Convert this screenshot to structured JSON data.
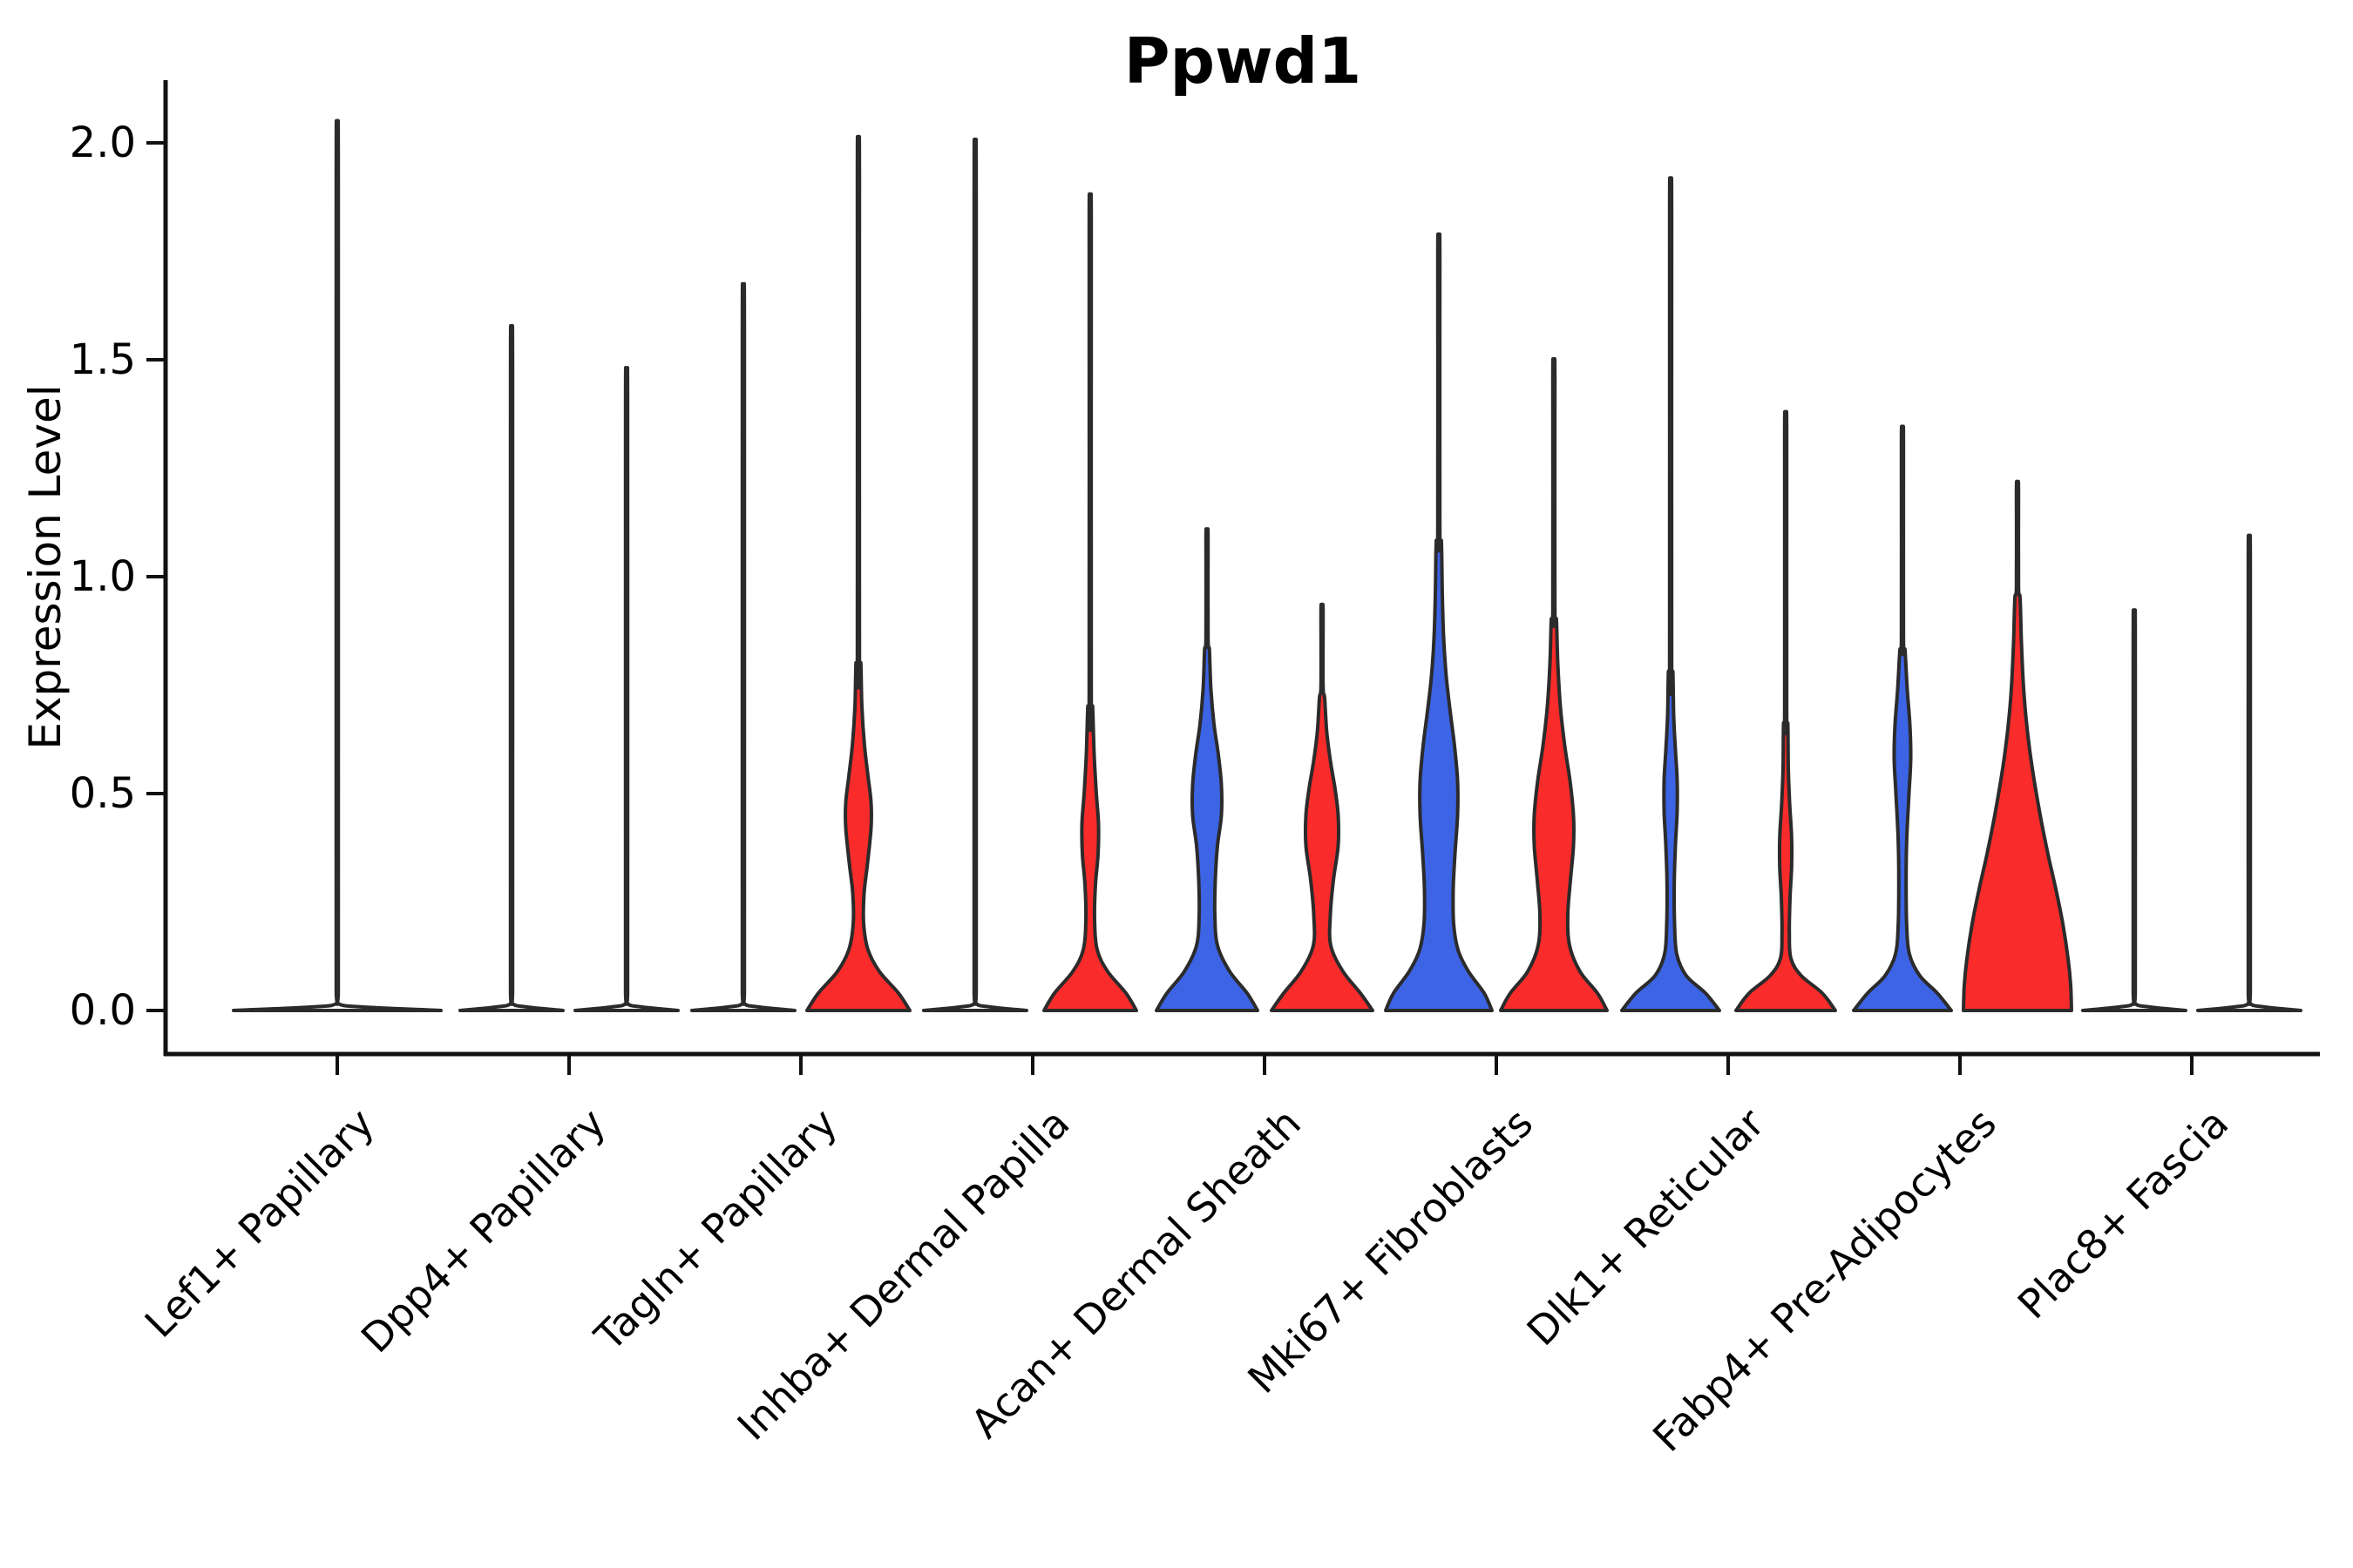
{
  "colors": {
    "blue": "#3D64E4",
    "red": "#F92B2B",
    "outline": "#2B2B2B",
    "axis": "#111111",
    "text": "#000000",
    "background": "#FFFFFF"
  },
  "chart_data": {
    "type": "violin",
    "title": "Ppwd1",
    "ylabel": "Expression Level",
    "xlabel": "",
    "ylim": [
      -0.1,
      2.15
    ],
    "yticks": [
      0.0,
      0.5,
      1.0,
      1.5,
      2.0
    ],
    "y_tick_labels": [
      "0.0",
      "0.5",
      "1.0",
      "1.5",
      "2.0"
    ],
    "grid": false,
    "legend_position": "none",
    "categories": [
      "Lef1+ Papillary",
      "Dpp4+ Papillary",
      "Tagln+ Papillary",
      "Inhba+ Dermal Papilla",
      "Acan+ Dermal Sheath",
      "Mki67+ Fibroblasts",
      "Dlk1+ Reticular",
      "Fabp4+ Pre-Adipocytes",
      "Plac8+ Fascia"
    ],
    "groups": [
      {
        "key": "blue",
        "color": "#3D64E4"
      },
      {
        "key": "red",
        "color": "#F92B2B"
      }
    ],
    "series": [
      {
        "name": "blue",
        "max_values": [
          null,
          1.48,
          1.57,
          1.88,
          1.1,
          1.75,
          1.85,
          1.32,
          0.87
        ]
      },
      {
        "name": "red",
        "max_values": [
          null,
          1.39,
          1.94,
          1.81,
          0.93,
          1.47,
          1.34,
          1.21,
          1.03
        ]
      }
    ],
    "violins": [
      {
        "cat_index": 0,
        "side": "center",
        "group": null,
        "flat": true,
        "max_expression": 1.92,
        "profile": [
          [
            0,
            119
          ],
          [
            0.008,
            30
          ],
          [
            0.016,
            1.2
          ]
        ]
      },
      {
        "cat_index": 1,
        "side": "left",
        "group": null,
        "flat": true,
        "max_expression": 1.48,
        "profile": [
          [
            0,
            59
          ],
          [
            0.008,
            18
          ],
          [
            0.016,
            1.2
          ]
        ]
      },
      {
        "cat_index": 1,
        "side": "right",
        "group": null,
        "flat": true,
        "max_expression": 1.39,
        "profile": [
          [
            0,
            59
          ],
          [
            0.008,
            18
          ],
          [
            0.016,
            1.2
          ]
        ]
      },
      {
        "cat_index": 2,
        "side": "left",
        "group": null,
        "flat": true,
        "max_expression": 1.57,
        "profile": [
          [
            0,
            59
          ],
          [
            0.008,
            18
          ],
          [
            0.016,
            1.2
          ]
        ]
      },
      {
        "cat_index": 2,
        "side": "right",
        "group": "red",
        "flat": false,
        "max_expression": 1.94,
        "profile": [
          [
            0,
            59
          ],
          [
            0.04,
            46
          ],
          [
            0.09,
            24
          ],
          [
            0.14,
            11
          ],
          [
            0.2,
            6
          ],
          [
            0.27,
            6.5
          ],
          [
            0.34,
            10.5
          ],
          [
            0.42,
            14.5
          ],
          [
            0.48,
            14.5
          ],
          [
            0.54,
            11
          ],
          [
            0.61,
            7
          ],
          [
            0.7,
            4
          ],
          [
            0.8,
            2.8
          ]
        ]
      },
      {
        "cat_index": 3,
        "side": "left",
        "group": null,
        "flat": true,
        "max_expression": 1.88,
        "profile": [
          [
            0,
            59
          ],
          [
            0.008,
            18
          ],
          [
            0.016,
            1.2
          ]
        ]
      },
      {
        "cat_index": 3,
        "side": "right",
        "group": "red",
        "flat": false,
        "max_expression": 1.81,
        "profile": [
          [
            0,
            53
          ],
          [
            0.04,
            41
          ],
          [
            0.09,
            20
          ],
          [
            0.14,
            8
          ],
          [
            0.21,
            5
          ],
          [
            0.29,
            6
          ],
          [
            0.36,
            9
          ],
          [
            0.43,
            9.5
          ],
          [
            0.5,
            7
          ],
          [
            0.59,
            4.5
          ],
          [
            0.7,
            2.8
          ]
        ]
      },
      {
        "cat_index": 4,
        "side": "left",
        "group": "blue",
        "flat": false,
        "max_expression": 1.1,
        "profile": [
          [
            0,
            58
          ],
          [
            0.04,
            46
          ],
          [
            0.09,
            26
          ],
          [
            0.15,
            12
          ],
          [
            0.22,
            9
          ],
          [
            0.3,
            9.5
          ],
          [
            0.38,
            12
          ],
          [
            0.45,
            16.5
          ],
          [
            0.52,
            16.5
          ],
          [
            0.59,
            13
          ],
          [
            0.66,
            8
          ],
          [
            0.74,
            4.5
          ],
          [
            0.83,
            2.8
          ]
        ]
      },
      {
        "cat_index": 4,
        "side": "right",
        "group": "red",
        "flat": false,
        "max_expression": 0.93,
        "profile": [
          [
            0,
            58
          ],
          [
            0.04,
            44
          ],
          [
            0.09,
            24
          ],
          [
            0.15,
            10
          ],
          [
            0.22,
            9.5
          ],
          [
            0.3,
            13
          ],
          [
            0.38,
            18.5
          ],
          [
            0.45,
            18.5
          ],
          [
            0.51,
            15
          ],
          [
            0.57,
            10
          ],
          [
            0.64,
            5.5
          ],
          [
            0.72,
            3
          ]
        ]
      },
      {
        "cat_index": 5,
        "side": "left",
        "group": "blue",
        "flat": false,
        "max_expression": 1.75,
        "profile": [
          [
            0,
            61
          ],
          [
            0.04,
            52
          ],
          [
            0.09,
            34
          ],
          [
            0.14,
            22
          ],
          [
            0.2,
            17
          ],
          [
            0.28,
            16.5
          ],
          [
            0.36,
            18.5
          ],
          [
            0.45,
            21.5
          ],
          [
            0.53,
            21.5
          ],
          [
            0.61,
            18
          ],
          [
            0.69,
            13
          ],
          [
            0.77,
            8.5
          ],
          [
            0.86,
            5.5
          ],
          [
            0.96,
            4
          ],
          [
            1.08,
            3
          ]
        ]
      },
      {
        "cat_index": 5,
        "side": "right",
        "group": "red",
        "flat": false,
        "max_expression": 1.47,
        "profile": [
          [
            0,
            61
          ],
          [
            0.04,
            50
          ],
          [
            0.09,
            30
          ],
          [
            0.15,
            18
          ],
          [
            0.22,
            16
          ],
          [
            0.3,
            19
          ],
          [
            0.38,
            22.5
          ],
          [
            0.45,
            22.5
          ],
          [
            0.53,
            18.5
          ],
          [
            0.61,
            12.5
          ],
          [
            0.7,
            7.5
          ],
          [
            0.8,
            4.5
          ],
          [
            0.9,
            3
          ]
        ]
      },
      {
        "cat_index": 6,
        "side": "left",
        "group": "blue",
        "flat": false,
        "max_expression": 1.85,
        "profile": [
          [
            0,
            56
          ],
          [
            0.04,
            40
          ],
          [
            0.08,
            18
          ],
          [
            0.13,
            7
          ],
          [
            0.2,
            4.5
          ],
          [
            0.3,
            4.2
          ],
          [
            0.38,
            5.5
          ],
          [
            0.46,
            7.5
          ],
          [
            0.53,
            7.5
          ],
          [
            0.6,
            5.5
          ],
          [
            0.68,
            3.5
          ],
          [
            0.78,
            2.6
          ]
        ]
      },
      {
        "cat_index": 6,
        "side": "right",
        "group": "red",
        "flat": false,
        "max_expression": 1.34,
        "profile": [
          [
            0,
            57
          ],
          [
            0.04,
            42
          ],
          [
            0.08,
            18
          ],
          [
            0.12,
            6
          ],
          [
            0.18,
            4.2
          ],
          [
            0.26,
            5
          ],
          [
            0.33,
            6.8
          ],
          [
            0.4,
            6.8
          ],
          [
            0.48,
            4.5
          ],
          [
            0.56,
            3
          ],
          [
            0.66,
            2.5
          ]
        ]
      },
      {
        "cat_index": 7,
        "side": "left",
        "group": "blue",
        "flat": false,
        "max_expression": 1.32,
        "profile": [
          [
            0,
            56
          ],
          [
            0.04,
            40
          ],
          [
            0.08,
            20
          ],
          [
            0.13,
            8
          ],
          [
            0.2,
            4.8
          ],
          [
            0.3,
            4.2
          ],
          [
            0.4,
            5
          ],
          [
            0.5,
            7.5
          ],
          [
            0.58,
            9.5
          ],
          [
            0.66,
            8.5
          ],
          [
            0.74,
            5.5
          ],
          [
            0.83,
            3
          ]
        ]
      },
      {
        "cat_index": 7,
        "side": "right",
        "group": "red",
        "flat": false,
        "max_expression": 1.21,
        "profile": [
          [
            0,
            62
          ],
          [
            0.06,
            61
          ],
          [
            0.12,
            58
          ],
          [
            0.2,
            52
          ],
          [
            0.28,
            44
          ],
          [
            0.36,
            35
          ],
          [
            0.44,
            27
          ],
          [
            0.52,
            20
          ],
          [
            0.6,
            14
          ],
          [
            0.68,
            9.5
          ],
          [
            0.76,
            6.5
          ],
          [
            0.85,
            4.5
          ],
          [
            0.95,
            3
          ]
        ]
      },
      {
        "cat_index": 8,
        "side": "left",
        "group": null,
        "flat": true,
        "max_expression": 0.87,
        "profile": [
          [
            0,
            59
          ],
          [
            0.008,
            18
          ],
          [
            0.016,
            1.2
          ]
        ]
      },
      {
        "cat_index": 8,
        "side": "right",
        "group": null,
        "flat": true,
        "max_expression": 1.03,
        "profile": [
          [
            0,
            59
          ],
          [
            0.008,
            18
          ],
          [
            0.016,
            1.2
          ]
        ]
      }
    ]
  }
}
